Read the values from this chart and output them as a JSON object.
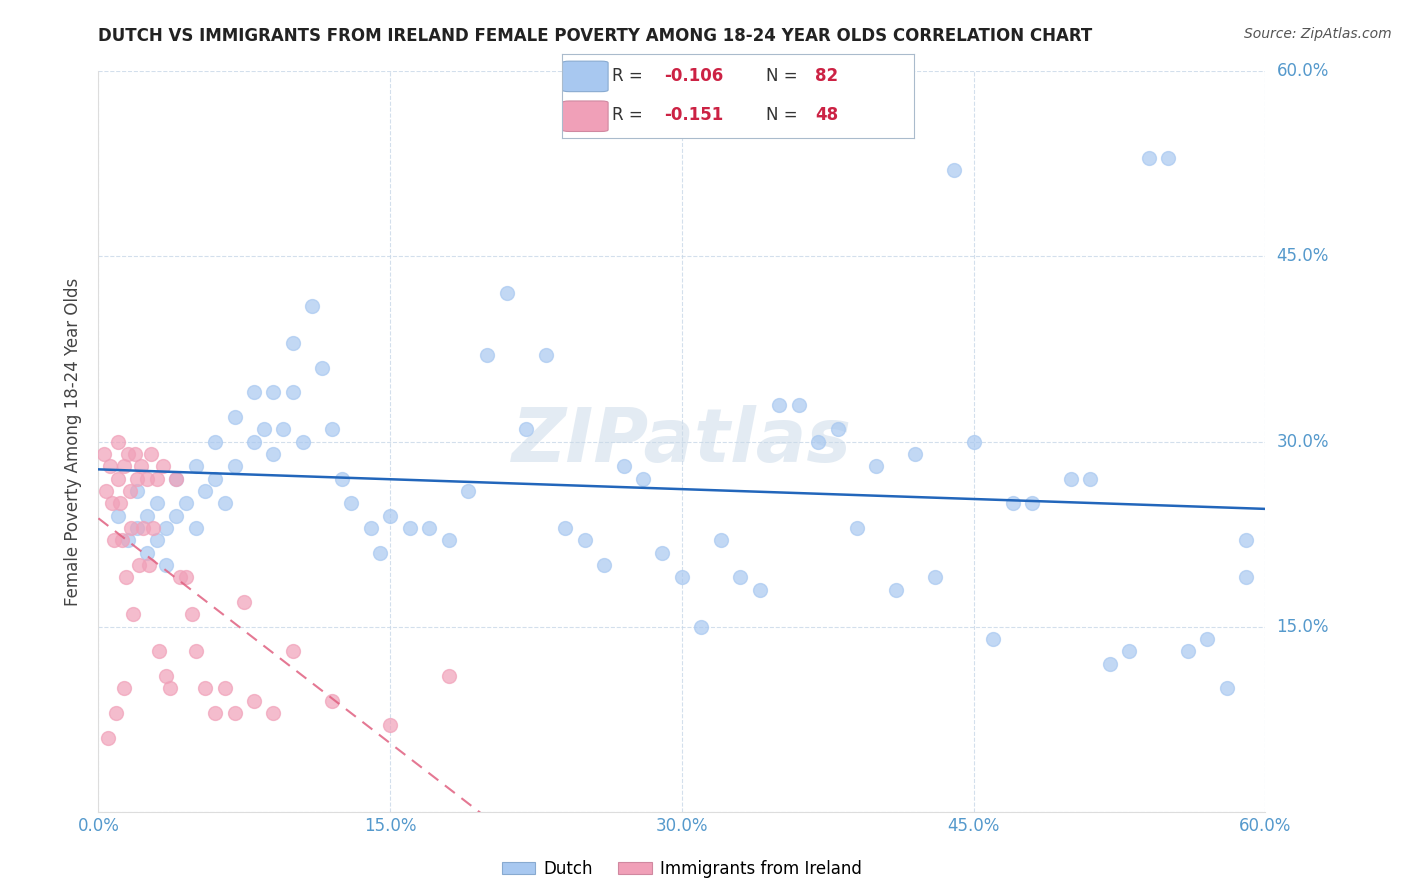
{
  "title": "DUTCH VS IMMIGRANTS FROM IRELAND FEMALE POVERTY AMONG 18-24 YEAR OLDS CORRELATION CHART",
  "source": "Source: ZipAtlas.com",
  "ylabel": "Female Poverty Among 18-24 Year Olds",
  "xlabel_dutch": "Dutch",
  "xlabel_ireland": "Immigrants from Ireland",
  "xlim": [
    0.0,
    0.6
  ],
  "ylim": [
    0.0,
    0.6
  ],
  "xticks": [
    0.0,
    0.15,
    0.3,
    0.45,
    0.6
  ],
  "yticks": [
    0.0,
    0.15,
    0.3,
    0.45,
    0.6
  ],
  "ytick_labels": [
    "",
    "15.0%",
    "30.0%",
    "45.0%",
    "60.0%"
  ],
  "xtick_labels": [
    "0.0%",
    "15.0%",
    "30.0%",
    "45.0%",
    "60.0%"
  ],
  "dutch_color": "#a8c8f0",
  "ireland_color": "#f0a0b8",
  "trend_dutch_color": "#2266bb",
  "trend_ireland_color": "#e06080",
  "watermark": "ZIPatlas",
  "dutch_x": [
    0.01,
    0.015,
    0.02,
    0.02,
    0.025,
    0.025,
    0.03,
    0.03,
    0.035,
    0.035,
    0.04,
    0.04,
    0.045,
    0.05,
    0.05,
    0.055,
    0.06,
    0.06,
    0.065,
    0.07,
    0.07,
    0.08,
    0.08,
    0.085,
    0.09,
    0.09,
    0.095,
    0.1,
    0.1,
    0.105,
    0.11,
    0.115,
    0.12,
    0.125,
    0.13,
    0.14,
    0.145,
    0.15,
    0.16,
    0.17,
    0.18,
    0.19,
    0.2,
    0.21,
    0.22,
    0.23,
    0.24,
    0.25,
    0.26,
    0.27,
    0.28,
    0.29,
    0.3,
    0.31,
    0.32,
    0.33,
    0.34,
    0.35,
    0.36,
    0.37,
    0.38,
    0.39,
    0.4,
    0.41,
    0.42,
    0.43,
    0.44,
    0.45,
    0.46,
    0.47,
    0.48,
    0.5,
    0.51,
    0.52,
    0.53,
    0.54,
    0.55,
    0.56,
    0.57,
    0.58,
    0.59,
    0.59
  ],
  "dutch_y": [
    0.24,
    0.22,
    0.26,
    0.23,
    0.24,
    0.21,
    0.25,
    0.22,
    0.23,
    0.2,
    0.27,
    0.24,
    0.25,
    0.28,
    0.23,
    0.26,
    0.3,
    0.27,
    0.25,
    0.32,
    0.28,
    0.34,
    0.3,
    0.31,
    0.34,
    0.29,
    0.31,
    0.38,
    0.34,
    0.3,
    0.41,
    0.36,
    0.31,
    0.27,
    0.25,
    0.23,
    0.21,
    0.24,
    0.23,
    0.23,
    0.22,
    0.26,
    0.37,
    0.42,
    0.31,
    0.37,
    0.23,
    0.22,
    0.2,
    0.28,
    0.27,
    0.21,
    0.19,
    0.15,
    0.22,
    0.19,
    0.18,
    0.33,
    0.33,
    0.3,
    0.31,
    0.23,
    0.28,
    0.18,
    0.29,
    0.19,
    0.52,
    0.3,
    0.14,
    0.25,
    0.25,
    0.27,
    0.27,
    0.12,
    0.13,
    0.53,
    0.53,
    0.13,
    0.14,
    0.1,
    0.22,
    0.19
  ],
  "ireland_x": [
    0.003,
    0.004,
    0.005,
    0.006,
    0.007,
    0.008,
    0.009,
    0.01,
    0.01,
    0.011,
    0.012,
    0.013,
    0.013,
    0.014,
    0.015,
    0.016,
    0.017,
    0.018,
    0.019,
    0.02,
    0.021,
    0.022,
    0.023,
    0.025,
    0.026,
    0.027,
    0.028,
    0.03,
    0.031,
    0.033,
    0.035,
    0.037,
    0.04,
    0.042,
    0.045,
    0.048,
    0.05,
    0.055,
    0.06,
    0.065,
    0.07,
    0.075,
    0.08,
    0.09,
    0.1,
    0.12,
    0.15,
    0.18
  ],
  "ireland_y": [
    0.29,
    0.26,
    0.06,
    0.28,
    0.25,
    0.22,
    0.08,
    0.3,
    0.27,
    0.25,
    0.22,
    0.1,
    0.28,
    0.19,
    0.29,
    0.26,
    0.23,
    0.16,
    0.29,
    0.27,
    0.2,
    0.28,
    0.23,
    0.27,
    0.2,
    0.29,
    0.23,
    0.27,
    0.13,
    0.28,
    0.11,
    0.1,
    0.27,
    0.19,
    0.19,
    0.16,
    0.13,
    0.1,
    0.08,
    0.1,
    0.08,
    0.17,
    0.09,
    0.08,
    0.13,
    0.09,
    0.07,
    0.11
  ]
}
